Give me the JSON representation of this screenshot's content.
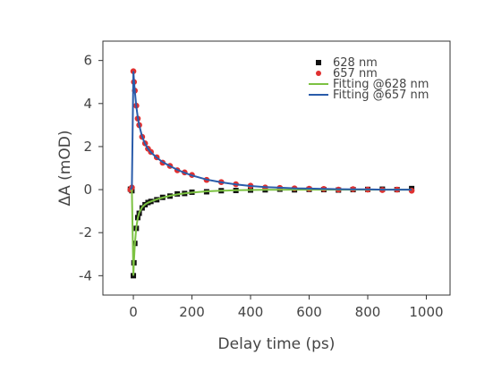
{
  "chart_data": {
    "type": "scatter",
    "xlabel": "Delay time (ps)",
    "ylabel": "ΔA (mOD)",
    "xlim": [
      -104,
      1081
    ],
    "ylim": [
      -4.9,
      6.9
    ],
    "xticks": [
      0,
      200,
      400,
      600,
      800,
      1000
    ],
    "yticks": [
      -4,
      -2,
      0,
      2,
      4,
      6
    ],
    "legend": "upper-right",
    "series": [
      {
        "name": "628 nm",
        "color": "#111111",
        "style": "marker",
        "marker": "square",
        "x": [
          -10,
          -5,
          0,
          2,
          5,
          10,
          15,
          20,
          30,
          40,
          50,
          60,
          80,
          100,
          125,
          150,
          175,
          200,
          250,
          300,
          350,
          400,
          450,
          500,
          550,
          600,
          650,
          700,
          750,
          800,
          850,
          900,
          950
        ],
        "values": [
          0.02,
          -0.05,
          -4.0,
          -3.4,
          -2.5,
          -1.8,
          -1.3,
          -1.1,
          -0.85,
          -0.7,
          -0.6,
          -0.55,
          -0.47,
          -0.36,
          -0.3,
          -0.2,
          -0.18,
          -0.12,
          -0.1,
          -0.05,
          -0.04,
          -0.02,
          -0.01,
          0.02,
          -0.01,
          0.01,
          0.0,
          -0.02,
          0.0,
          0.01,
          0.02,
          0.0,
          0.05
        ]
      },
      {
        "name": "657 nm",
        "color": "#e03030",
        "style": "marker",
        "marker": "circle",
        "x": [
          -10,
          -5,
          0,
          2,
          5,
          10,
          15,
          20,
          30,
          40,
          50,
          60,
          80,
          100,
          125,
          150,
          175,
          200,
          250,
          300,
          350,
          400,
          450,
          500,
          550,
          600,
          650,
          700,
          750,
          800,
          850,
          900,
          950
        ],
        "values": [
          0.0,
          0.1,
          5.5,
          5.0,
          4.6,
          3.9,
          3.3,
          3.0,
          2.45,
          2.15,
          1.9,
          1.75,
          1.5,
          1.25,
          1.1,
          0.9,
          0.8,
          0.68,
          0.45,
          0.35,
          0.25,
          0.18,
          0.1,
          0.08,
          0.06,
          0.04,
          0.03,
          0.0,
          0.02,
          0.0,
          -0.02,
          0.0,
          -0.05
        ]
      },
      {
        "name": "Fitting @628 nm",
        "color": "#7cc242",
        "style": "line",
        "x": [
          -10,
          -5,
          0,
          2,
          5,
          10,
          15,
          20,
          30,
          40,
          50,
          60,
          80,
          100,
          125,
          150,
          175,
          200,
          250,
          300,
          350,
          400,
          450,
          500,
          550,
          600,
          650,
          700,
          750,
          800,
          850,
          900,
          950
        ],
        "values": [
          0,
          -0.05,
          -4.0,
          -3.32,
          -2.56,
          -1.76,
          -1.32,
          -1.07,
          -0.81,
          -0.69,
          -0.61,
          -0.55,
          -0.45,
          -0.37,
          -0.29,
          -0.22,
          -0.17,
          -0.14,
          -0.08,
          -0.05,
          -0.03,
          -0.02,
          -0.01,
          -0.01,
          0,
          0,
          0,
          0,
          0,
          0,
          0,
          0,
          0
        ]
      },
      {
        "name": "Fitting @657 nm",
        "color": "#2a5caa",
        "style": "line",
        "x": [
          -10,
          -5,
          0,
          2,
          5,
          10,
          15,
          20,
          30,
          40,
          50,
          60,
          80,
          100,
          125,
          150,
          175,
          200,
          250,
          300,
          350,
          400,
          450,
          500,
          550,
          600,
          650,
          700,
          750,
          800,
          850,
          900,
          950
        ],
        "values": [
          0,
          0.1,
          5.5,
          5.09,
          4.57,
          3.88,
          3.36,
          2.98,
          2.46,
          2.13,
          1.9,
          1.73,
          1.48,
          1.28,
          1.09,
          0.92,
          0.78,
          0.66,
          0.47,
          0.34,
          0.24,
          0.17,
          0.12,
          0.09,
          0.06,
          0.05,
          0.03,
          0.02,
          0.01,
          0.01,
          0,
          0,
          0
        ]
      }
    ]
  }
}
